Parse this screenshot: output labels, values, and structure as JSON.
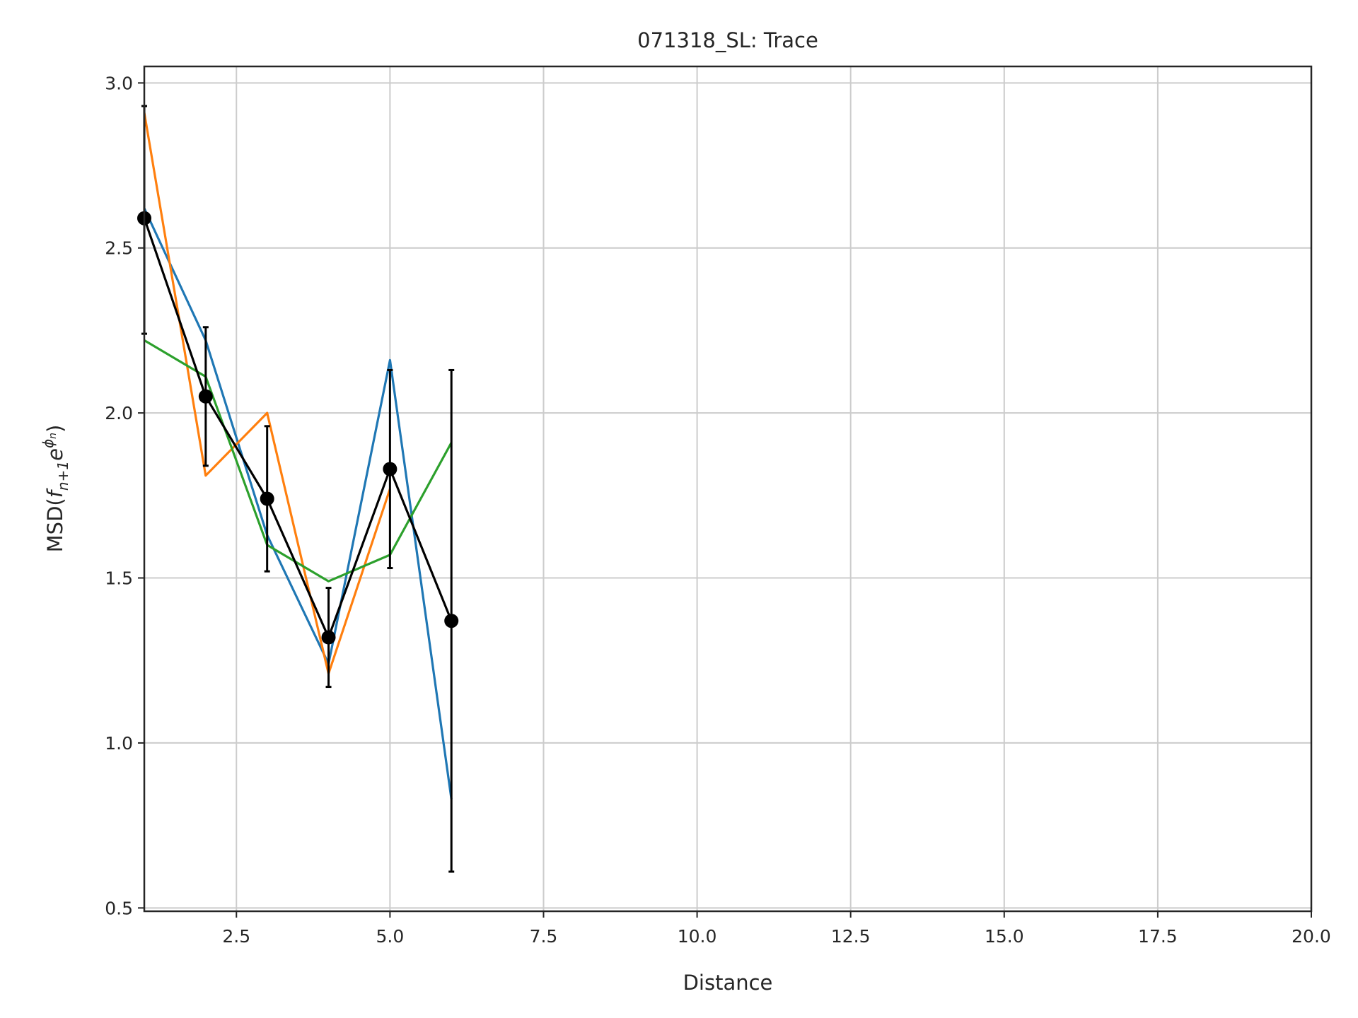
{
  "chart_data": {
    "type": "line",
    "title": "071318_SL: Trace",
    "xlabel": "Distance",
    "ylabel": {
      "prefix": "MSD(",
      "f": "f",
      "f_sub": "n+1",
      "e": "e",
      "e_sup": "ϕ",
      "e_sup_sub": "n",
      "suffix": ")"
    },
    "xlim": [
      1,
      20
    ],
    "ylim": [
      0.49,
      3.05
    ],
    "xticks": [
      2.5,
      5.0,
      7.5,
      10.0,
      12.5,
      15.0,
      17.5,
      20.0
    ],
    "xtick_labels": [
      "2.5",
      "5.0",
      "7.5",
      "10.0",
      "12.5",
      "15.0",
      "17.5",
      "20.0"
    ],
    "yticks": [
      0.5,
      1.0,
      1.5,
      2.0,
      2.5,
      3.0
    ],
    "ytick_labels": [
      "0.5",
      "1.0",
      "1.5",
      "2.0",
      "2.5",
      "3.0"
    ],
    "grid": true,
    "series": [
      {
        "color": "#1f77b4",
        "x": [
          1,
          2,
          3,
          4,
          5,
          6
        ],
        "y": [
          2.62,
          2.22,
          1.63,
          1.24,
          2.16,
          0.83
        ]
      },
      {
        "color": "#ff7f0e",
        "x": [
          1,
          2,
          3,
          4,
          5
        ],
        "y": [
          2.91,
          1.81,
          2.0,
          1.21,
          1.77
        ]
      },
      {
        "color": "#2ca02c",
        "x": [
          1,
          2,
          3,
          4,
          5,
          6
        ],
        "y": [
          2.22,
          2.11,
          1.6,
          1.49,
          1.57,
          1.91
        ]
      },
      {
        "color": "#000000",
        "markers": true,
        "x": [
          1,
          2,
          3,
          4,
          5,
          6
        ],
        "y": [
          2.59,
          2.05,
          1.74,
          1.32,
          1.83,
          1.37
        ],
        "yerr_low": [
          2.24,
          1.84,
          1.52,
          1.17,
          1.53,
          0.61
        ],
        "yerr_high": [
          2.93,
          2.26,
          1.96,
          1.47,
          2.13,
          2.13
        ]
      }
    ]
  }
}
